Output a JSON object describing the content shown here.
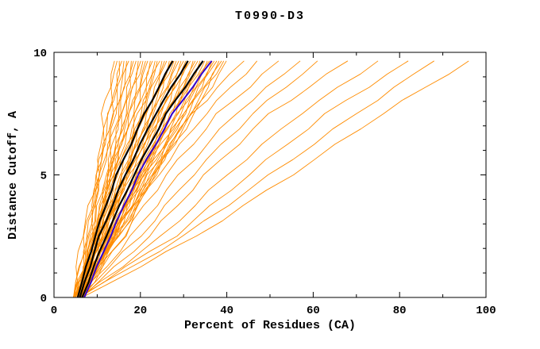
{
  "chart_data": {
    "type": "line",
    "title": "T0990-D3",
    "xlabel": "Percent of Residues (CA)",
    "ylabel": "Distance Cutoff, A",
    "xlim": [
      0,
      100
    ],
    "ylim": [
      0,
      10
    ],
    "xticks": [
      0,
      20,
      40,
      60,
      80,
      100
    ],
    "yticks": [
      0,
      5,
      10
    ],
    "x_minor_step": 10,
    "y_minor_step": 1,
    "grid": "off",
    "legend": "none",
    "y_anchors": [
      0,
      2.5,
      5,
      7.5,
      9.65
    ],
    "colors": {
      "models": "#FF8C00",
      "reference": "#3300CC",
      "best_models": "#000000"
    },
    "series_groups": [
      {
        "name": "server-models-orange",
        "color": "#FF8C00",
        "width": 0.9,
        "jitter": 0.5,
        "lines": [
          [
            4.5,
            6.3,
            10.3,
            11.3,
            14.0
          ],
          [
            4.9,
            7.1,
            10.2,
            12.5,
            14.6
          ],
          [
            5.3,
            7.9,
            10.1,
            13.5,
            15.1
          ],
          [
            5.7,
            8.8,
            10.0,
            12.9,
            15.7
          ],
          [
            6.1,
            9.6,
            12.3,
            14.0,
            16.2
          ],
          [
            6.5,
            8.5,
            12.2,
            15.1,
            16.8
          ],
          [
            4.5,
            7.6,
            10.9,
            13.9,
            17.3
          ],
          [
            4.9,
            8.4,
            10.8,
            15.0,
            17.9
          ],
          [
            5.3,
            9.2,
            13.0,
            16.1,
            18.4
          ],
          [
            5.7,
            10.1,
            12.9,
            15.5,
            19.0
          ],
          [
            6.1,
            8.9,
            12.8,
            16.6,
            19.5
          ],
          [
            6.5,
            9.8,
            12.7,
            17.7,
            20.1
          ],
          [
            4.5,
            8.9,
            13.8,
            16.5,
            20.6
          ],
          [
            4.9,
            9.7,
            13.7,
            17.6,
            21.2
          ],
          [
            5.3,
            10.5,
            13.5,
            18.7,
            21.7
          ],
          [
            5.7,
            9.4,
            13.4,
            18.1,
            22.3
          ],
          [
            6.1,
            10.2,
            15.7,
            19.1,
            22.8
          ],
          [
            6.5,
            11.1,
            15.6,
            20.3,
            23.4
          ],
          [
            4.5,
            10.1,
            14.3,
            20.2,
            23.9
          ],
          [
            4.9,
            11.0,
            14.2,
            19.6,
            24.5
          ],
          [
            5.3,
            9.8,
            16.4,
            20.7,
            25.0
          ],
          [
            5.7,
            10.7,
            16.4,
            21.8,
            25.6
          ],
          [
            6.1,
            11.5,
            16.2,
            21.1,
            26.1
          ],
          [
            6.5,
            12.4,
            16.1,
            22.3,
            26.7
          ],
          [
            4.5,
            11.4,
            17.2,
            22.8,
            27.2
          ],
          [
            4.9,
            10.3,
            17.1,
            22.2,
            27.8
          ],
          [
            5.3,
            11.1,
            17.0,
            23.2,
            28.3
          ],
          [
            5.7,
            12.0,
            16.9,
            24.4,
            28.9
          ],
          [
            6.1,
            12.8,
            19.1,
            23.7,
            29.4
          ],
          [
            6.5,
            13.7,
            19.0,
            24.8,
            30.0
          ],
          [
            4.5,
            10.7,
            17.7,
            25.4,
            30.5
          ],
          [
            4.9,
            11.6,
            17.6,
            24.7,
            31.1
          ],
          [
            5.3,
            12.4,
            19.9,
            25.8,
            31.6
          ],
          [
            5.7,
            13.3,
            19.8,
            27.0,
            32.2
          ],
          [
            6.1,
            14.1,
            19.6,
            26.3,
            32.7
          ],
          [
            6.5,
            12.9,
            19.5,
            27.4,
            33.3
          ],
          [
            4.5,
            12.0,
            20.6,
            27.9,
            33.8
          ],
          [
            4.9,
            12.9,
            20.5,
            27.3,
            34.4
          ],
          [
            5.3,
            13.7,
            20.4,
            28.4,
            34.9
          ],
          [
            5.7,
            14.6,
            20.3,
            29.5,
            35.5
          ],
          [
            6.1,
            13.4,
            22.6,
            28.8,
            36.0
          ],
          [
            6.5,
            14.2,
            22.5,
            30.0,
            36.6
          ],
          [
            4.5,
            13.3,
            21.2,
            30.5,
            37.1
          ],
          [
            4.9,
            14.2,
            21.1,
            29.9,
            37.7
          ],
          [
            5.3,
            15.0,
            23.3,
            31.0,
            38.2
          ],
          [
            5.7,
            13.8,
            23.2,
            32.1,
            38.8
          ],
          [
            6.1,
            14.7,
            23.1,
            31.4,
            39.3
          ],
          [
            6.5,
            16.3,
            23.0,
            32.6,
            39.9
          ],
          [
            6.0,
            14.0,
            22.0,
            32.0,
            44.0
          ],
          [
            6.5,
            15.0,
            24.0,
            35.0,
            47.0
          ],
          [
            5.5,
            16.0,
            26.0,
            38.0,
            52.0
          ],
          [
            6.0,
            18.0,
            29.0,
            42.0,
            57.0
          ],
          [
            5.5,
            20.0,
            32.0,
            46.0,
            61.0
          ],
          [
            6.5,
            22.0,
            35.0,
            50.0,
            68.0
          ],
          [
            6.0,
            25.0,
            40.0,
            57.0,
            75.0
          ],
          [
            5.5,
            28.0,
            45.0,
            63.0,
            82.0
          ],
          [
            6.0,
            30.0,
            50.0,
            70.0,
            88.0
          ],
          [
            6.5,
            33.0,
            55.0,
            76.0,
            96.0
          ]
        ]
      },
      {
        "name": "reference-model-blue",
        "color": "#3300CC",
        "width": 2,
        "jitter": 0.15,
        "lines": [
          [
            7.0,
            13.0,
            19.5,
            27.5,
            36.5
          ]
        ]
      },
      {
        "name": "best-models-black",
        "color": "#000000",
        "width": 2.2,
        "jitter": 0.15,
        "lines": [
          [
            5.5,
            9.5,
            14.5,
            21.0,
            27.5
          ],
          [
            6.0,
            10.5,
            16.5,
            23.5,
            31.0
          ],
          [
            6.5,
            12.0,
            18.5,
            26.0,
            34.5
          ]
        ]
      }
    ]
  }
}
